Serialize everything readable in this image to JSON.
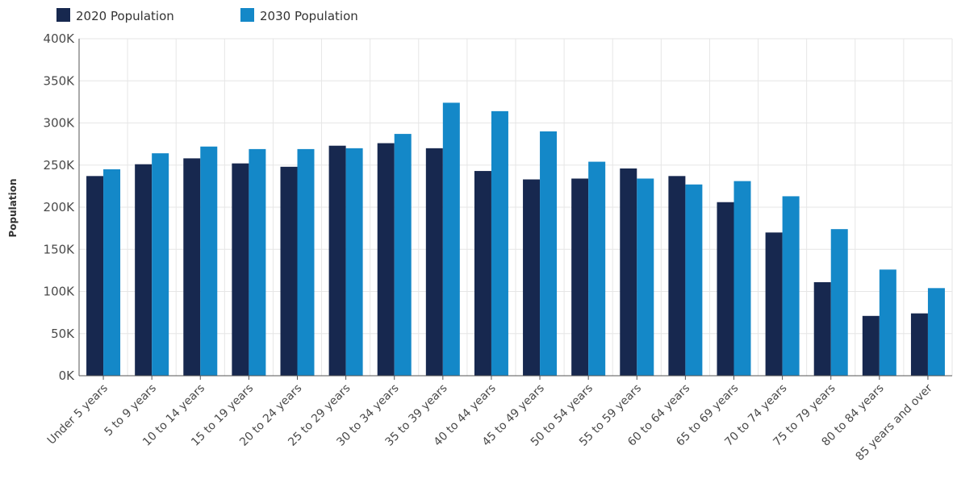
{
  "chart_data": {
    "type": "bar",
    "title": "",
    "xlabel": "",
    "ylabel": "Population",
    "ylim": [
      0,
      400000
    ],
    "yticks": [
      0,
      50000,
      100000,
      150000,
      200000,
      250000,
      300000,
      350000,
      400000
    ],
    "ytick_labels": [
      "0K",
      "50K",
      "100K",
      "150K",
      "200K",
      "250K",
      "300K",
      "350K",
      "400K"
    ],
    "grid": true,
    "legend_position": "top-left",
    "categories": [
      "Under 5 years",
      "5 to 9 years",
      "10 to 14 years",
      "15 to 19 years",
      "20 to 24 years",
      "25 to 29 years",
      "30 to 34 years",
      "35 to 39 years",
      "40 to 44 years",
      "45 to 49 years",
      "50 to 54 years",
      "55 to 59 years",
      "60 to 64 years",
      "65 to 69 years",
      "70 to 74 years",
      "75 to 79 years",
      "80 to 84 years",
      "85 years and over"
    ],
    "series": [
      {
        "name": "2020 Population",
        "color": "#17284f",
        "values": [
          237000,
          251000,
          258000,
          252000,
          248000,
          273000,
          276000,
          270000,
          243000,
          233000,
          234000,
          246000,
          237000,
          206000,
          170000,
          111000,
          71000,
          74000
        ]
      },
      {
        "name": "2030 Population",
        "color": "#1488c8",
        "values": [
          245000,
          264000,
          272000,
          269000,
          269000,
          270000,
          287000,
          324000,
          314000,
          290000,
          254000,
          234000,
          227000,
          231000,
          213000,
          174000,
          126000,
          104000
        ]
      }
    ]
  }
}
